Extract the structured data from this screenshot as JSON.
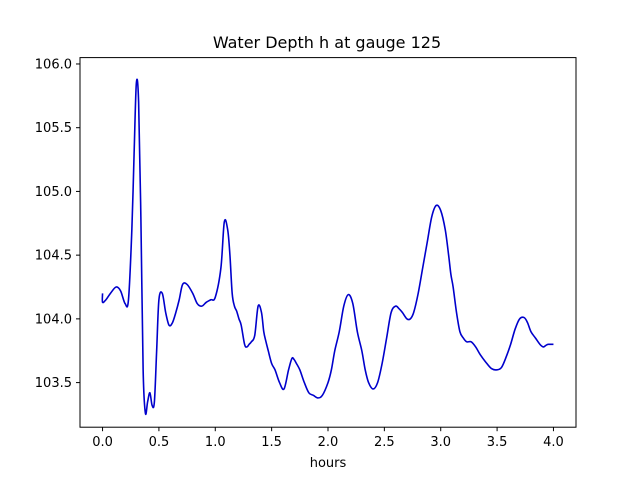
{
  "chart_data": {
    "type": "line",
    "title": "Water Depth h at gauge 125",
    "xlabel": "hours",
    "ylabel": "",
    "xlim": [
      -0.2,
      4.2
    ],
    "ylim": [
      103.15,
      106.05
    ],
    "xticks": [
      0.0,
      0.5,
      1.0,
      1.5,
      2.0,
      2.5,
      3.0,
      3.5,
      4.0
    ],
    "xtick_labels": [
      "0.0",
      "0.5",
      "1.0",
      "1.5",
      "2.0",
      "2.5",
      "3.0",
      "3.5",
      "4.0"
    ],
    "yticks": [
      103.5,
      104.0,
      104.5,
      105.0,
      105.5,
      106.0
    ],
    "ytick_labels": [
      "103.5",
      "104.0",
      "104.5",
      "105.0",
      "105.5",
      "106.0"
    ],
    "grid": false,
    "series": [
      {
        "color": "#0000cc",
        "x": [
          0.0,
          0.0,
          0.03,
          0.07,
          0.12,
          0.16,
          0.2,
          0.23,
          0.26,
          0.28,
          0.3,
          0.32,
          0.34,
          0.36,
          0.38,
          0.4,
          0.42,
          0.44,
          0.46,
          0.48,
          0.5,
          0.53,
          0.56,
          0.59,
          0.62,
          0.65,
          0.68,
          0.71,
          0.75,
          0.8,
          0.84,
          0.88,
          0.92,
          0.96,
          1.0,
          1.05,
          1.08,
          1.11,
          1.13,
          1.15,
          1.17,
          1.19,
          1.21,
          1.23,
          1.26,
          1.28,
          1.3,
          1.32,
          1.35,
          1.38,
          1.41,
          1.43,
          1.45,
          1.47,
          1.5,
          1.53,
          1.57,
          1.61,
          1.65,
          1.68,
          1.7,
          1.72,
          1.75,
          1.79,
          1.83,
          1.87,
          1.91,
          1.95,
          2.0,
          2.03,
          2.06,
          2.1,
          2.14,
          2.18,
          2.22,
          2.26,
          2.3,
          2.33,
          2.36,
          2.4,
          2.44,
          2.48,
          2.52,
          2.56,
          2.6,
          2.63,
          2.66,
          2.7,
          2.73,
          2.76,
          2.8,
          2.84,
          2.88,
          2.92,
          2.96,
          3.0,
          3.04,
          3.07,
          3.09,
          3.11,
          3.14,
          3.17,
          3.2,
          3.23,
          3.27,
          3.31,
          3.35,
          3.4,
          3.45,
          3.5,
          3.54,
          3.58,
          3.62,
          3.66,
          3.7,
          3.74,
          3.77,
          3.8,
          3.84,
          3.88,
          3.91,
          3.93,
          3.95,
          3.97,
          4.0
        ],
        "y": [
          104.2,
          104.13,
          104.15,
          104.2,
          104.25,
          104.22,
          104.12,
          104.15,
          104.7,
          105.3,
          105.85,
          105.7,
          104.8,
          103.6,
          103.26,
          103.35,
          103.42,
          103.32,
          103.35,
          103.75,
          104.15,
          104.2,
          104.05,
          103.95,
          103.97,
          104.05,
          104.15,
          104.27,
          104.27,
          104.2,
          104.12,
          104.1,
          104.13,
          104.15,
          104.17,
          104.4,
          104.76,
          104.7,
          104.5,
          104.2,
          104.1,
          104.06,
          104.0,
          103.95,
          103.8,
          103.78,
          103.8,
          103.82,
          103.87,
          104.1,
          104.05,
          103.9,
          103.82,
          103.75,
          103.65,
          103.6,
          103.5,
          103.45,
          103.6,
          103.69,
          103.68,
          103.65,
          103.6,
          103.5,
          103.42,
          103.4,
          103.38,
          103.4,
          103.5,
          103.6,
          103.75,
          103.9,
          104.1,
          104.19,
          104.12,
          103.9,
          103.75,
          103.6,
          103.5,
          103.45,
          103.5,
          103.65,
          103.85,
          104.05,
          104.1,
          104.08,
          104.05,
          104.0,
          104.0,
          104.05,
          104.2,
          104.4,
          104.6,
          104.8,
          104.89,
          104.85,
          104.7,
          104.5,
          104.35,
          104.25,
          104.05,
          103.9,
          103.85,
          103.82,
          103.82,
          103.78,
          103.72,
          103.66,
          103.61,
          103.6,
          103.62,
          103.7,
          103.8,
          103.92,
          104.0,
          104.01,
          103.97,
          103.9,
          103.85,
          103.8,
          103.78,
          103.79,
          103.8,
          103.8,
          103.8
        ]
      }
    ]
  }
}
